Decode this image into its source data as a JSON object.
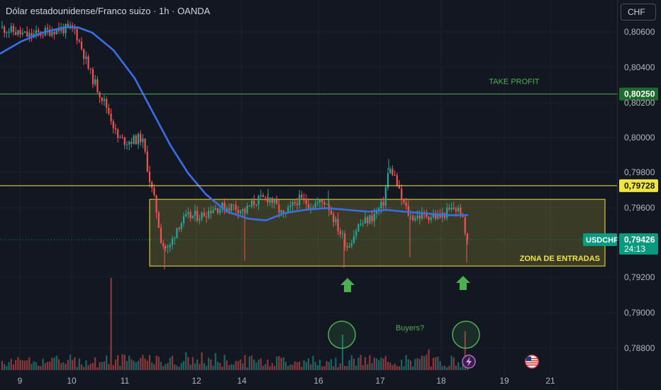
{
  "header": {
    "title": "Dólar estadounidense/Franco suizo · 1h · OANDA",
    "currency_button": "CHF"
  },
  "chart_data": {
    "type": "candlestick",
    "symbol": "USDCHF",
    "y_ticks": [
      "0,80600",
      "0,80400",
      "0,80200",
      "0,80000",
      "0,79800",
      "0,79600",
      "0,79200",
      "0,79000",
      "0,78800"
    ],
    "x_ticks": [
      "9",
      "10",
      "11",
      "12",
      "14",
      "16",
      "17",
      "18",
      "19",
      "21"
    ],
    "ylim": [
      0.7876,
      0.8071
    ],
    "last_price": {
      "value": "0,79426",
      "symbol": "USDCHF",
      "countdown": "24:13",
      "color": "#089981"
    },
    "horizontal_levels": [
      {
        "label": "TAKE PROFIT",
        "value": 0.8025,
        "value_label": "0,80250",
        "color": "#4caf50"
      },
      {
        "label": "",
        "value": 0.79728,
        "value_label": "0,79728",
        "color": "#f0e442"
      }
    ],
    "zone": {
      "label": "ZONA DE ENTRADAS",
      "top": 0.7965,
      "bottom": 0.7927,
      "color": "#f0e442"
    },
    "annotations": {
      "buyers_text": "Buyers?",
      "up_arrows": 2,
      "volume_circles": 2
    },
    "colors": {
      "up": "#26a69a",
      "down": "#ef5350",
      "ma": "#2962ff",
      "background": "#131722"
    }
  }
}
